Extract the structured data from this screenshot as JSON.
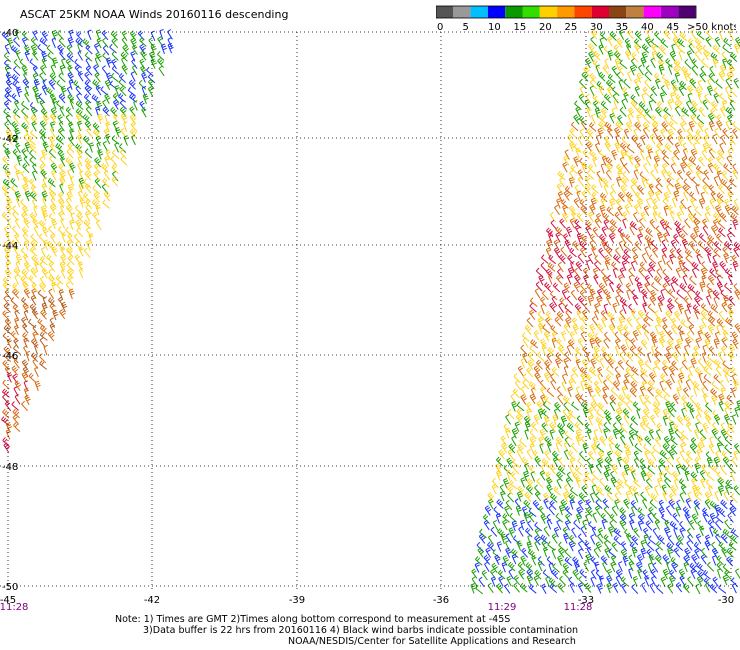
{
  "title": "ASCAT 25KM NOAA Winds 20160116 descending",
  "legend": {
    "labels": [
      "0",
      "5",
      "10",
      "15",
      "20",
      "25",
      "30",
      "35",
      "40",
      "45",
      ">50 knots"
    ],
    "colors": [
      "#555555",
      "#999999",
      "#00bfff",
      "#0000ff",
      "#0a9a00",
      "#33dd00",
      "#ffd000",
      "#ff9900",
      "#ff4400",
      "#e00030",
      "#8b4513",
      "#c08040",
      "#ff00ff",
      "#a000c0",
      "#500070"
    ]
  },
  "axes": {
    "lon_labels": [
      "-45",
      "-42",
      "-39",
      "-36",
      "-33",
      "-30"
    ],
    "lat_labels": [
      "-40",
      "-42",
      "-44",
      "-46",
      "-48",
      "-50"
    ],
    "time_labels": [
      "11:28",
      "11:29",
      "11:28"
    ]
  },
  "notes": {
    "line1": "Note: 1) Times are GMT 2)Times along bottom correspond to measurement at -45S",
    "line2": "3)Data buffer is 22 hrs from 20160116 4) Black wind barbs indicate possible contamination",
    "line3": "NOAA/NESDIS/Center for Satellite Applications and Research"
  },
  "swaths": {
    "left": {
      "speed_bands": [
        [
          "blue",
          "green"
        ],
        [
          "green",
          "yellow"
        ],
        [
          "yellow"
        ],
        [
          "orange",
          "brown"
        ],
        [
          "red",
          "orange"
        ]
      ]
    },
    "right": {
      "speed_bands": [
        [
          "yellow",
          "green"
        ],
        [
          "orange",
          "yellow"
        ],
        [
          "orange",
          "red"
        ],
        [
          "yellow",
          "orange"
        ],
        [
          "green",
          "yellow"
        ],
        [
          "blue",
          "green"
        ]
      ]
    }
  }
}
